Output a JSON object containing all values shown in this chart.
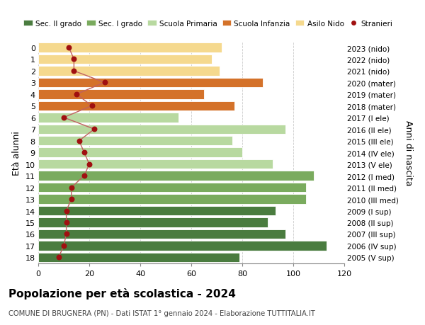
{
  "ages": [
    18,
    17,
    16,
    15,
    14,
    13,
    12,
    11,
    10,
    9,
    8,
    7,
    6,
    5,
    4,
    3,
    2,
    1,
    0
  ],
  "bar_values": [
    79,
    113,
    97,
    90,
    93,
    105,
    105,
    108,
    92,
    80,
    76,
    97,
    55,
    77,
    65,
    88,
    71,
    68,
    72
  ],
  "stranieri_values": [
    8,
    10,
    11,
    11,
    11,
    13,
    13,
    18,
    20,
    18,
    16,
    22,
    10,
    21,
    15,
    26,
    14,
    14,
    12
  ],
  "right_labels": [
    "2005 (V sup)",
    "2006 (IV sup)",
    "2007 (III sup)",
    "2008 (II sup)",
    "2009 (I sup)",
    "2010 (III med)",
    "2011 (II med)",
    "2012 (I med)",
    "2013 (V ele)",
    "2014 (IV ele)",
    "2015 (III ele)",
    "2016 (II ele)",
    "2017 (I ele)",
    "2018 (mater)",
    "2019 (mater)",
    "2020 (mater)",
    "2021 (nido)",
    "2022 (nido)",
    "2023 (nido)"
  ],
  "bar_colors": [
    "#4a7c3f",
    "#4a7c3f",
    "#4a7c3f",
    "#4a7c3f",
    "#4a7c3f",
    "#7aab5e",
    "#7aab5e",
    "#7aab5e",
    "#b8d9a0",
    "#b8d9a0",
    "#b8d9a0",
    "#b8d9a0",
    "#b8d9a0",
    "#d4722a",
    "#d4722a",
    "#d4722a",
    "#f5d98e",
    "#f5d98e",
    "#f5d98e"
  ],
  "legend_labels": [
    "Sec. II grado",
    "Sec. I grado",
    "Scuola Primaria",
    "Scuola Infanzia",
    "Asilo Nido",
    "Stranieri"
  ],
  "legend_colors": [
    "#4a7c3f",
    "#7aab5e",
    "#b8d9a0",
    "#d4722a",
    "#f5d98e",
    "#c0392b"
  ],
  "ylabel_left": "Età alunni",
  "ylabel_right": "Anni di nascita",
  "xlim": [
    0,
    120
  ],
  "xticks": [
    0,
    20,
    40,
    60,
    80,
    100,
    120
  ],
  "title": "Popolazione per età scolastica - 2024",
  "subtitle": "COMUNE DI BRUGNERA (PN) - Dati ISTAT 1° gennaio 2024 - Elaborazione TUTTITALIA.IT",
  "bg_color": "#ffffff",
  "grid_color": "#cccccc",
  "stranieri_color": "#a01010",
  "stranieri_line_color": "#c06060"
}
